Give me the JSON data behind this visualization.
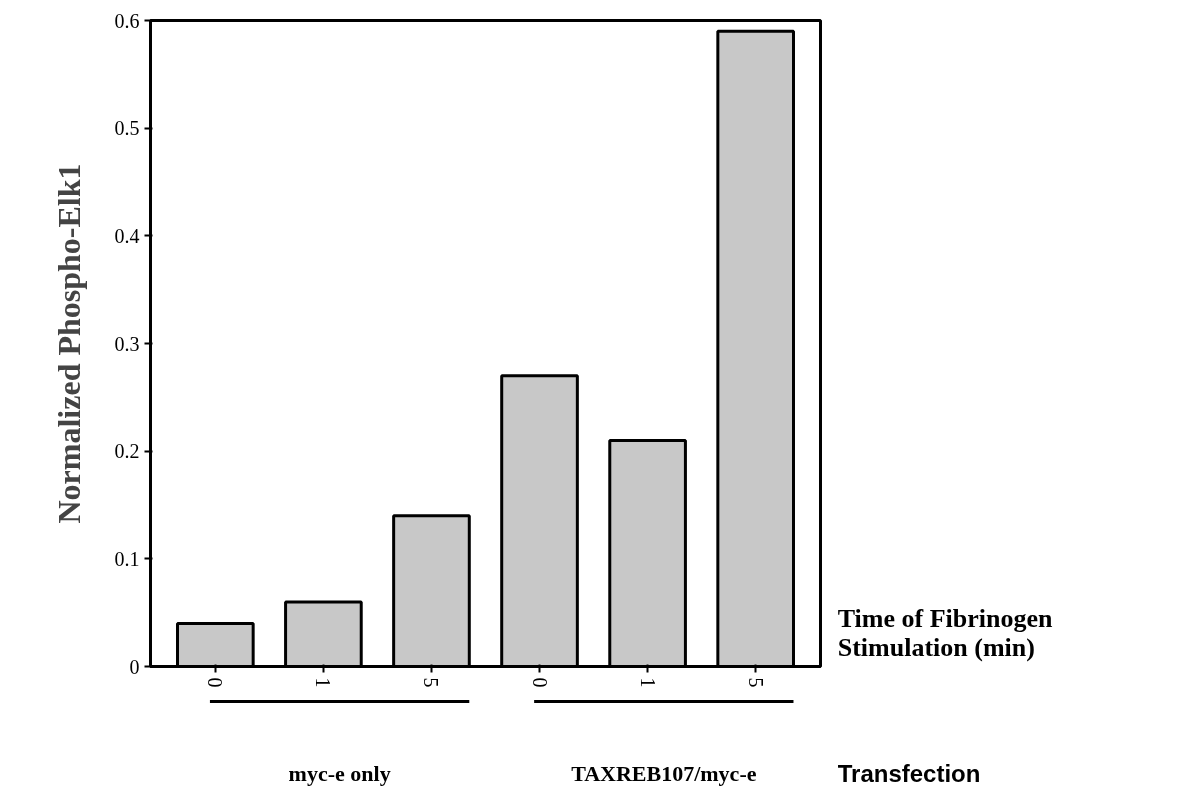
{
  "chart_data": {
    "type": "bar",
    "ylabel": "Normalized Phospho-Elk1",
    "xlabel": "Time of Fibrinogen Stimulation (min)",
    "categories": [
      "0",
      "1",
      "5",
      "0",
      "1",
      "5"
    ],
    "values": [
      0.04,
      0.06,
      0.14,
      0.27,
      0.21,
      0.59
    ],
    "color": "#c8c8c8",
    "ylim": [
      0,
      0.6
    ],
    "yticks": [
      0,
      0.1,
      0.2,
      0.3,
      0.4,
      0.5,
      0.6
    ],
    "annotations": [
      "myc-e only",
      "TAXREB107/myc-e",
      "Transfection"
    ]
  }
}
